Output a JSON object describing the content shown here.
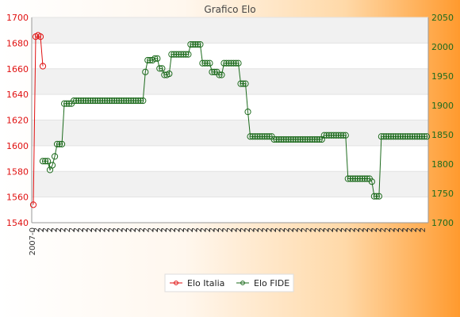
{
  "chart_data": {
    "type": "line",
    "title": "Grafico Elo",
    "y_left": {
      "ylim": [
        1540,
        1700
      ],
      "ticks": [
        1540,
        1560,
        1580,
        1600,
        1620,
        1640,
        1660,
        1680,
        1700
      ],
      "color": "#e01010"
    },
    "y_right": {
      "ylim": [
        1700,
        2050
      ],
      "ticks": [
        1700,
        1750,
        1800,
        1850,
        1900,
        1950,
        2000,
        2050
      ],
      "color": "#1d6b1d"
    },
    "x_tick_labels": [
      "2007-0",
      "2",
      "2",
      "2",
      "2",
      "2"
    ],
    "grid": "horizontal bands",
    "legend": {
      "position": "bottom-center"
    },
    "series": [
      {
        "name": "Elo Italia",
        "axis": "left",
        "color": "#e01010",
        "points": [
          {
            "x": 0,
            "y": 1554
          },
          {
            "x": 1,
            "y": 1685
          },
          {
            "x": 2,
            "y": 1686
          },
          {
            "x": 3,
            "y": 1685
          },
          {
            "x": 4,
            "y": 1662
          }
        ]
      },
      {
        "name": "Elo FIDE",
        "axis": "right",
        "color": "#1d6b1d",
        "points": [
          {
            "x": 4,
            "y": 1805
          },
          {
            "x": 5,
            "y": 1805
          },
          {
            "x": 6,
            "y": 1805
          },
          {
            "x": 7,
            "y": 1790
          },
          {
            "x": 8,
            "y": 1798
          },
          {
            "x": 9,
            "y": 1813
          },
          {
            "x": 10,
            "y": 1834
          },
          {
            "x": 11,
            "y": 1834
          },
          {
            "x": 12,
            "y": 1834
          },
          {
            "x": 13,
            "y": 1903
          },
          {
            "x": 14,
            "y": 1903
          },
          {
            "x": 15,
            "y": 1903
          },
          {
            "x": 16,
            "y": 1903
          },
          {
            "x": 17,
            "y": 1908
          },
          {
            "x": 18,
            "y": 1908
          },
          {
            "x": 19,
            "y": 1908
          },
          {
            "x": 20,
            "y": 1908
          },
          {
            "x": 21,
            "y": 1908
          },
          {
            "x": 22,
            "y": 1908
          },
          {
            "x": 23,
            "y": 1908
          },
          {
            "x": 24,
            "y": 1908
          },
          {
            "x": 25,
            "y": 1908
          },
          {
            "x": 26,
            "y": 1908
          },
          {
            "x": 27,
            "y": 1908
          },
          {
            "x": 28,
            "y": 1908
          },
          {
            "x": 29,
            "y": 1908
          },
          {
            "x": 30,
            "y": 1908
          },
          {
            "x": 31,
            "y": 1908
          },
          {
            "x": 32,
            "y": 1908
          },
          {
            "x": 33,
            "y": 1908
          },
          {
            "x": 34,
            "y": 1908
          },
          {
            "x": 35,
            "y": 1908
          },
          {
            "x": 36,
            "y": 1908
          },
          {
            "x": 37,
            "y": 1908
          },
          {
            "x": 38,
            "y": 1908
          },
          {
            "x": 39,
            "y": 1908
          },
          {
            "x": 40,
            "y": 1908
          },
          {
            "x": 41,
            "y": 1908
          },
          {
            "x": 42,
            "y": 1908
          },
          {
            "x": 43,
            "y": 1908
          },
          {
            "x": 44,
            "y": 1908
          },
          {
            "x": 45,
            "y": 1908
          },
          {
            "x": 46,
            "y": 1908
          },
          {
            "x": 47,
            "y": 1957
          },
          {
            "x": 48,
            "y": 1977
          },
          {
            "x": 49,
            "y": 1977
          },
          {
            "x": 50,
            "y": 1977
          },
          {
            "x": 51,
            "y": 1980
          },
          {
            "x": 52,
            "y": 1980
          },
          {
            "x": 53,
            "y": 1963
          },
          {
            "x": 54,
            "y": 1963
          },
          {
            "x": 55,
            "y": 1952
          },
          {
            "x": 56,
            "y": 1952
          },
          {
            "x": 57,
            "y": 1954
          },
          {
            "x": 58,
            "y": 1987
          },
          {
            "x": 59,
            "y": 1987
          },
          {
            "x": 60,
            "y": 1987
          },
          {
            "x": 61,
            "y": 1987
          },
          {
            "x": 62,
            "y": 1987
          },
          {
            "x": 63,
            "y": 1987
          },
          {
            "x": 64,
            "y": 1987
          },
          {
            "x": 65,
            "y": 1987
          },
          {
            "x": 66,
            "y": 2004
          },
          {
            "x": 67,
            "y": 2004
          },
          {
            "x": 68,
            "y": 2004
          },
          {
            "x": 69,
            "y": 2004
          },
          {
            "x": 70,
            "y": 2004
          },
          {
            "x": 71,
            "y": 1972
          },
          {
            "x": 72,
            "y": 1972
          },
          {
            "x": 73,
            "y": 1972
          },
          {
            "x": 74,
            "y": 1972
          },
          {
            "x": 75,
            "y": 1957
          },
          {
            "x": 76,
            "y": 1957
          },
          {
            "x": 77,
            "y": 1957
          },
          {
            "x": 78,
            "y": 1952
          },
          {
            "x": 79,
            "y": 1952
          },
          {
            "x": 80,
            "y": 1972
          },
          {
            "x": 81,
            "y": 1972
          },
          {
            "x": 82,
            "y": 1972
          },
          {
            "x": 83,
            "y": 1972
          },
          {
            "x": 84,
            "y": 1972
          },
          {
            "x": 85,
            "y": 1972
          },
          {
            "x": 86,
            "y": 1972
          },
          {
            "x": 87,
            "y": 1937
          },
          {
            "x": 88,
            "y": 1937
          },
          {
            "x": 89,
            "y": 1937
          },
          {
            "x": 90,
            "y": 1889
          },
          {
            "x": 91,
            "y": 1847
          },
          {
            "x": 92,
            "y": 1847
          },
          {
            "x": 93,
            "y": 1847
          },
          {
            "x": 94,
            "y": 1847
          },
          {
            "x": 95,
            "y": 1847
          },
          {
            "x": 96,
            "y": 1847
          },
          {
            "x": 97,
            "y": 1847
          },
          {
            "x": 98,
            "y": 1847
          },
          {
            "x": 99,
            "y": 1847
          },
          {
            "x": 100,
            "y": 1847
          },
          {
            "x": 101,
            "y": 1842
          },
          {
            "x": 102,
            "y": 1842
          },
          {
            "x": 103,
            "y": 1842
          },
          {
            "x": 104,
            "y": 1842
          },
          {
            "x": 105,
            "y": 1842
          },
          {
            "x": 106,
            "y": 1842
          },
          {
            "x": 107,
            "y": 1842
          },
          {
            "x": 108,
            "y": 1842
          },
          {
            "x": 109,
            "y": 1842
          },
          {
            "x": 110,
            "y": 1842
          },
          {
            "x": 111,
            "y": 1842
          },
          {
            "x": 112,
            "y": 1842
          },
          {
            "x": 113,
            "y": 1842
          },
          {
            "x": 114,
            "y": 1842
          },
          {
            "x": 115,
            "y": 1842
          },
          {
            "x": 116,
            "y": 1842
          },
          {
            "x": 117,
            "y": 1842
          },
          {
            "x": 118,
            "y": 1842
          },
          {
            "x": 119,
            "y": 1842
          },
          {
            "x": 120,
            "y": 1842
          },
          {
            "x": 121,
            "y": 1842
          },
          {
            "x": 122,
            "y": 1849
          },
          {
            "x": 123,
            "y": 1849
          },
          {
            "x": 124,
            "y": 1849
          },
          {
            "x": 125,
            "y": 1849
          },
          {
            "x": 126,
            "y": 1849
          },
          {
            "x": 127,
            "y": 1849
          },
          {
            "x": 128,
            "y": 1849
          },
          {
            "x": 129,
            "y": 1849
          },
          {
            "x": 130,
            "y": 1849
          },
          {
            "x": 131,
            "y": 1849
          },
          {
            "x": 132,
            "y": 1775
          },
          {
            "x": 133,
            "y": 1775
          },
          {
            "x": 134,
            "y": 1775
          },
          {
            "x": 135,
            "y": 1775
          },
          {
            "x": 136,
            "y": 1775
          },
          {
            "x": 137,
            "y": 1775
          },
          {
            "x": 138,
            "y": 1775
          },
          {
            "x": 139,
            "y": 1775
          },
          {
            "x": 140,
            "y": 1775
          },
          {
            "x": 141,
            "y": 1775
          },
          {
            "x": 142,
            "y": 1770
          },
          {
            "x": 143,
            "y": 1745
          },
          {
            "x": 144,
            "y": 1745
          },
          {
            "x": 145,
            "y": 1745
          },
          {
            "x": 146,
            "y": 1847
          },
          {
            "x": 147,
            "y": 1847
          },
          {
            "x": 148,
            "y": 1847
          },
          {
            "x": 149,
            "y": 1847
          },
          {
            "x": 150,
            "y": 1847
          },
          {
            "x": 151,
            "y": 1847
          },
          {
            "x": 152,
            "y": 1847
          },
          {
            "x": 153,
            "y": 1847
          },
          {
            "x": 154,
            "y": 1847
          },
          {
            "x": 155,
            "y": 1847
          },
          {
            "x": 156,
            "y": 1847
          },
          {
            "x": 157,
            "y": 1847
          },
          {
            "x": 158,
            "y": 1847
          },
          {
            "x": 159,
            "y": 1847
          },
          {
            "x": 160,
            "y": 1847
          },
          {
            "x": 161,
            "y": 1847
          },
          {
            "x": 162,
            "y": 1847
          },
          {
            "x": 163,
            "y": 1847
          },
          {
            "x": 164,
            "y": 1847
          },
          {
            "x": 165,
            "y": 1847
          }
        ]
      }
    ]
  }
}
